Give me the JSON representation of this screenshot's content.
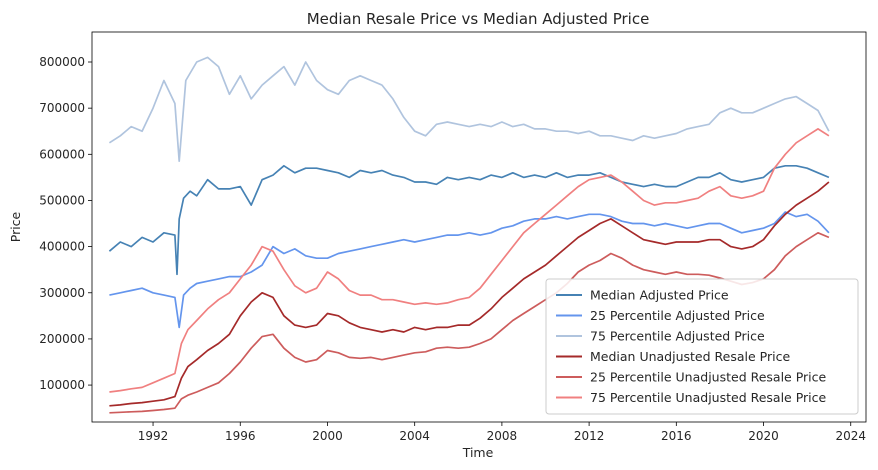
{
  "chart_data": {
    "type": "line",
    "title": "Median Resale Price vs Median Adjusted Price",
    "xlabel": "Time",
    "ylabel": "Price",
    "xlim": [
      1989.2,
      2024.7
    ],
    "ylim": [
      20000,
      865000
    ],
    "x_ticks": [
      1992,
      1996,
      2000,
      2004,
      2008,
      2012,
      2016,
      2020,
      2024
    ],
    "y_ticks": [
      100000,
      200000,
      300000,
      400000,
      500000,
      600000,
      700000,
      800000
    ],
    "legend_position": "lower-right",
    "grid": false,
    "series": [
      {
        "name": "Median Adjusted Price",
        "color": "#4682b4",
        "x": [
          1990.0,
          1990.5,
          1991.0,
          1991.5,
          1992.0,
          1992.5,
          1993.0,
          1993.1,
          1993.2,
          1993.4,
          1993.7,
          1994.0,
          1994.5,
          1995.0,
          1995.5,
          1996.0,
          1996.5,
          1997.0,
          1997.5,
          1998.0,
          1998.5,
          1999.0,
          1999.5,
          2000.0,
          2000.5,
          2001.0,
          2001.5,
          2002.0,
          2002.5,
          2003.0,
          2003.5,
          2004.0,
          2004.5,
          2005.0,
          2005.5,
          2006.0,
          2006.5,
          2007.0,
          2007.5,
          2008.0,
          2008.5,
          2009.0,
          2009.5,
          2010.0,
          2010.5,
          2011.0,
          2011.5,
          2012.0,
          2012.5,
          2013.0,
          2013.5,
          2014.0,
          2014.5,
          2015.0,
          2015.5,
          2016.0,
          2016.5,
          2017.0,
          2017.5,
          2018.0,
          2018.5,
          2019.0,
          2019.5,
          2020.0,
          2020.5,
          2021.0,
          2021.5,
          2022.0,
          2022.5,
          2023.0
        ],
        "y": [
          390000,
          410000,
          400000,
          420000,
          410000,
          430000,
          425000,
          340000,
          460000,
          505000,
          520000,
          510000,
          545000,
          525000,
          525000,
          530000,
          490000,
          545000,
          555000,
          575000,
          560000,
          570000,
          570000,
          565000,
          560000,
          550000,
          565000,
          560000,
          565000,
          555000,
          550000,
          540000,
          540000,
          535000,
          550000,
          545000,
          550000,
          545000,
          555000,
          550000,
          560000,
          550000,
          555000,
          550000,
          560000,
          550000,
          555000,
          555000,
          560000,
          550000,
          540000,
          535000,
          530000,
          535000,
          530000,
          530000,
          540000,
          550000,
          550000,
          560000,
          545000,
          540000,
          545000,
          550000,
          570000,
          575000,
          575000,
          570000,
          560000,
          550000
        ]
      },
      {
        "name": "25 Percentile Adjusted Price",
        "color": "#6495ed",
        "x": [
          1990.0,
          1990.5,
          1991.0,
          1991.5,
          1992.0,
          1992.5,
          1993.0,
          1993.2,
          1993.4,
          1993.7,
          1994.0,
          1994.5,
          1995.0,
          1995.5,
          1996.0,
          1996.5,
          1997.0,
          1997.5,
          1998.0,
          1998.5,
          1999.0,
          1999.5,
          2000.0,
          2000.5,
          2001.0,
          2001.5,
          2002.0,
          2002.5,
          2003.0,
          2003.5,
          2004.0,
          2004.5,
          2005.0,
          2005.5,
          2006.0,
          2006.5,
          2007.0,
          2007.5,
          2008.0,
          2008.5,
          2009.0,
          2009.5,
          2010.0,
          2010.5,
          2011.0,
          2011.5,
          2012.0,
          2012.5,
          2013.0,
          2013.5,
          2014.0,
          2014.5,
          2015.0,
          2015.5,
          2016.0,
          2016.5,
          2017.0,
          2017.5,
          2018.0,
          2018.5,
          2019.0,
          2019.5,
          2020.0,
          2020.5,
          2021.0,
          2021.5,
          2022.0,
          2022.5,
          2023.0
        ],
        "y": [
          295000,
          300000,
          305000,
          310000,
          300000,
          295000,
          290000,
          225000,
          295000,
          310000,
          320000,
          325000,
          330000,
          335000,
          335000,
          345000,
          360000,
          400000,
          385000,
          395000,
          380000,
          375000,
          375000,
          385000,
          390000,
          395000,
          400000,
          405000,
          410000,
          415000,
          410000,
          415000,
          420000,
          425000,
          425000,
          430000,
          425000,
          430000,
          440000,
          445000,
          455000,
          460000,
          460000,
          465000,
          460000,
          465000,
          470000,
          470000,
          465000,
          455000,
          450000,
          450000,
          445000,
          450000,
          445000,
          440000,
          445000,
          450000,
          450000,
          440000,
          430000,
          435000,
          440000,
          450000,
          475000,
          465000,
          470000,
          455000,
          430000
        ]
      },
      {
        "name": "75 Percentile Adjusted Price",
        "color": "#b0c4de",
        "x": [
          1990.0,
          1990.5,
          1991.0,
          1991.5,
          1992.0,
          1992.5,
          1993.0,
          1993.2,
          1993.5,
          1994.0,
          1994.5,
          1995.0,
          1995.5,
          1996.0,
          1996.5,
          1997.0,
          1997.5,
          1998.0,
          1998.5,
          1999.0,
          1999.5,
          2000.0,
          2000.5,
          2001.0,
          2001.5,
          2002.0,
          2002.5,
          2003.0,
          2003.5,
          2004.0,
          2004.5,
          2005.0,
          2005.5,
          2006.0,
          2006.5,
          2007.0,
          2007.5,
          2008.0,
          2008.5,
          2009.0,
          2009.5,
          2010.0,
          2010.5,
          2011.0,
          2011.5,
          2012.0,
          2012.5,
          2013.0,
          2013.5,
          2014.0,
          2014.5,
          2015.0,
          2015.5,
          2016.0,
          2016.5,
          2017.0,
          2017.5,
          2018.0,
          2018.5,
          2019.0,
          2019.5,
          2020.0,
          2020.5,
          2021.0,
          2021.5,
          2022.0,
          2022.5,
          2023.0
        ],
        "y": [
          625000,
          640000,
          660000,
          650000,
          700000,
          760000,
          710000,
          585000,
          760000,
          800000,
          810000,
          790000,
          730000,
          770000,
          720000,
          750000,
          770000,
          790000,
          750000,
          800000,
          760000,
          740000,
          730000,
          760000,
          770000,
          760000,
          750000,
          720000,
          680000,
          650000,
          640000,
          665000,
          670000,
          665000,
          660000,
          665000,
          660000,
          670000,
          660000,
          665000,
          655000,
          655000,
          650000,
          650000,
          645000,
          650000,
          640000,
          640000,
          635000,
          630000,
          640000,
          635000,
          640000,
          645000,
          655000,
          660000,
          665000,
          690000,
          700000,
          690000,
          690000,
          700000,
          710000,
          720000,
          725000,
          710000,
          695000,
          650000
        ]
      },
      {
        "name": "Median Unadjusted Resale Price",
        "color": "#a52a2a",
        "x": [
          1990.0,
          1990.5,
          1991.0,
          1991.5,
          1992.0,
          1992.5,
          1993.0,
          1993.3,
          1993.6,
          1994.0,
          1994.5,
          1995.0,
          1995.5,
          1996.0,
          1996.5,
          1997.0,
          1997.5,
          1998.0,
          1998.5,
          1999.0,
          1999.5,
          2000.0,
          2000.5,
          2001.0,
          2001.5,
          2002.0,
          2002.5,
          2003.0,
          2003.5,
          2004.0,
          2004.5,
          2005.0,
          2005.5,
          2006.0,
          2006.5,
          2007.0,
          2007.5,
          2008.0,
          2008.5,
          2009.0,
          2009.5,
          2010.0,
          2010.5,
          2011.0,
          2011.5,
          2012.0,
          2012.5,
          2013.0,
          2013.5,
          2014.0,
          2014.5,
          2015.0,
          2015.5,
          2016.0,
          2016.5,
          2017.0,
          2017.5,
          2018.0,
          2018.5,
          2019.0,
          2019.5,
          2020.0,
          2020.5,
          2021.0,
          2021.5,
          2022.0,
          2022.5,
          2023.0
        ],
        "y": [
          55000,
          57000,
          60000,
          62000,
          65000,
          68000,
          75000,
          115000,
          140000,
          155000,
          175000,
          190000,
          210000,
          250000,
          280000,
          300000,
          290000,
          250000,
          230000,
          225000,
          230000,
          255000,
          250000,
          235000,
          225000,
          220000,
          215000,
          220000,
          215000,
          225000,
          220000,
          225000,
          225000,
          230000,
          230000,
          245000,
          265000,
          290000,
          310000,
          330000,
          345000,
          360000,
          380000,
          400000,
          420000,
          435000,
          450000,
          460000,
          445000,
          430000,
          415000,
          410000,
          405000,
          410000,
          410000,
          410000,
          415000,
          415000,
          400000,
          395000,
          400000,
          415000,
          445000,
          470000,
          490000,
          505000,
          520000,
          540000
        ]
      },
      {
        "name": "25 Percentile Unadjusted Resale Price",
        "color": "#cd5c5c",
        "x": [
          1990.0,
          1990.5,
          1991.0,
          1991.5,
          1992.0,
          1992.5,
          1993.0,
          1993.3,
          1993.6,
          1994.0,
          1994.5,
          1995.0,
          1995.5,
          1996.0,
          1996.5,
          1997.0,
          1997.5,
          1998.0,
          1998.5,
          1999.0,
          1999.5,
          2000.0,
          2000.5,
          2001.0,
          2001.5,
          2002.0,
          2002.5,
          2003.0,
          2003.5,
          2004.0,
          2004.5,
          2005.0,
          2005.5,
          2006.0,
          2006.5,
          2007.0,
          2007.5,
          2008.0,
          2008.5,
          2009.0,
          2009.5,
          2010.0,
          2010.5,
          2011.0,
          2011.5,
          2012.0,
          2012.5,
          2013.0,
          2013.5,
          2014.0,
          2014.5,
          2015.0,
          2015.5,
          2016.0,
          2016.5,
          2017.0,
          2017.5,
          2018.0,
          2018.5,
          2019.0,
          2019.5,
          2020.0,
          2020.5,
          2021.0,
          2021.5,
          2022.0,
          2022.5,
          2023.0
        ],
        "y": [
          40000,
          41000,
          42000,
          43000,
          45000,
          47000,
          50000,
          70000,
          78000,
          85000,
          95000,
          105000,
          125000,
          150000,
          180000,
          205000,
          210000,
          180000,
          160000,
          150000,
          155000,
          175000,
          170000,
          160000,
          158000,
          160000,
          155000,
          160000,
          165000,
          170000,
          172000,
          180000,
          182000,
          180000,
          182000,
          190000,
          200000,
          220000,
          240000,
          255000,
          270000,
          285000,
          300000,
          320000,
          345000,
          360000,
          370000,
          385000,
          375000,
          360000,
          350000,
          345000,
          340000,
          345000,
          340000,
          340000,
          338000,
          332000,
          325000,
          318000,
          322000,
          330000,
          350000,
          380000,
          400000,
          415000,
          430000,
          420000
        ]
      },
      {
        "name": "75 Percentile Unadjusted Resale Price",
        "color": "#f08080",
        "x": [
          1990.0,
          1990.5,
          1991.0,
          1991.5,
          1992.0,
          1992.5,
          1993.0,
          1993.3,
          1993.6,
          1994.0,
          1994.5,
          1995.0,
          1995.5,
          1996.0,
          1996.5,
          1997.0,
          1997.5,
          1998.0,
          1998.5,
          1999.0,
          1999.5,
          2000.0,
          2000.5,
          2001.0,
          2001.5,
          2002.0,
          2002.5,
          2003.0,
          2003.5,
          2004.0,
          2004.5,
          2005.0,
          2005.5,
          2006.0,
          2006.5,
          2007.0,
          2007.5,
          2008.0,
          2008.5,
          2009.0,
          2009.5,
          2010.0,
          2010.5,
          2011.0,
          2011.5,
          2012.0,
          2012.5,
          2013.0,
          2013.5,
          2014.0,
          2014.5,
          2015.0,
          2015.5,
          2016.0,
          2016.5,
          2017.0,
          2017.5,
          2018.0,
          2018.5,
          2019.0,
          2019.5,
          2020.0,
          2020.5,
          2021.0,
          2021.5,
          2022.0,
          2022.5,
          2023.0
        ],
        "y": [
          85000,
          88000,
          92000,
          95000,
          105000,
          115000,
          125000,
          190000,
          220000,
          240000,
          265000,
          285000,
          300000,
          330000,
          360000,
          400000,
          390000,
          350000,
          315000,
          300000,
          310000,
          345000,
          330000,
          305000,
          295000,
          295000,
          285000,
          285000,
          280000,
          275000,
          278000,
          275000,
          278000,
          285000,
          290000,
          310000,
          340000,
          370000,
          400000,
          430000,
          450000,
          470000,
          490000,
          510000,
          530000,
          545000,
          550000,
          555000,
          540000,
          520000,
          500000,
          490000,
          495000,
          495000,
          500000,
          505000,
          520000,
          530000,
          510000,
          505000,
          510000,
          520000,
          570000,
          600000,
          625000,
          640000,
          655000,
          640000
        ]
      }
    ]
  }
}
